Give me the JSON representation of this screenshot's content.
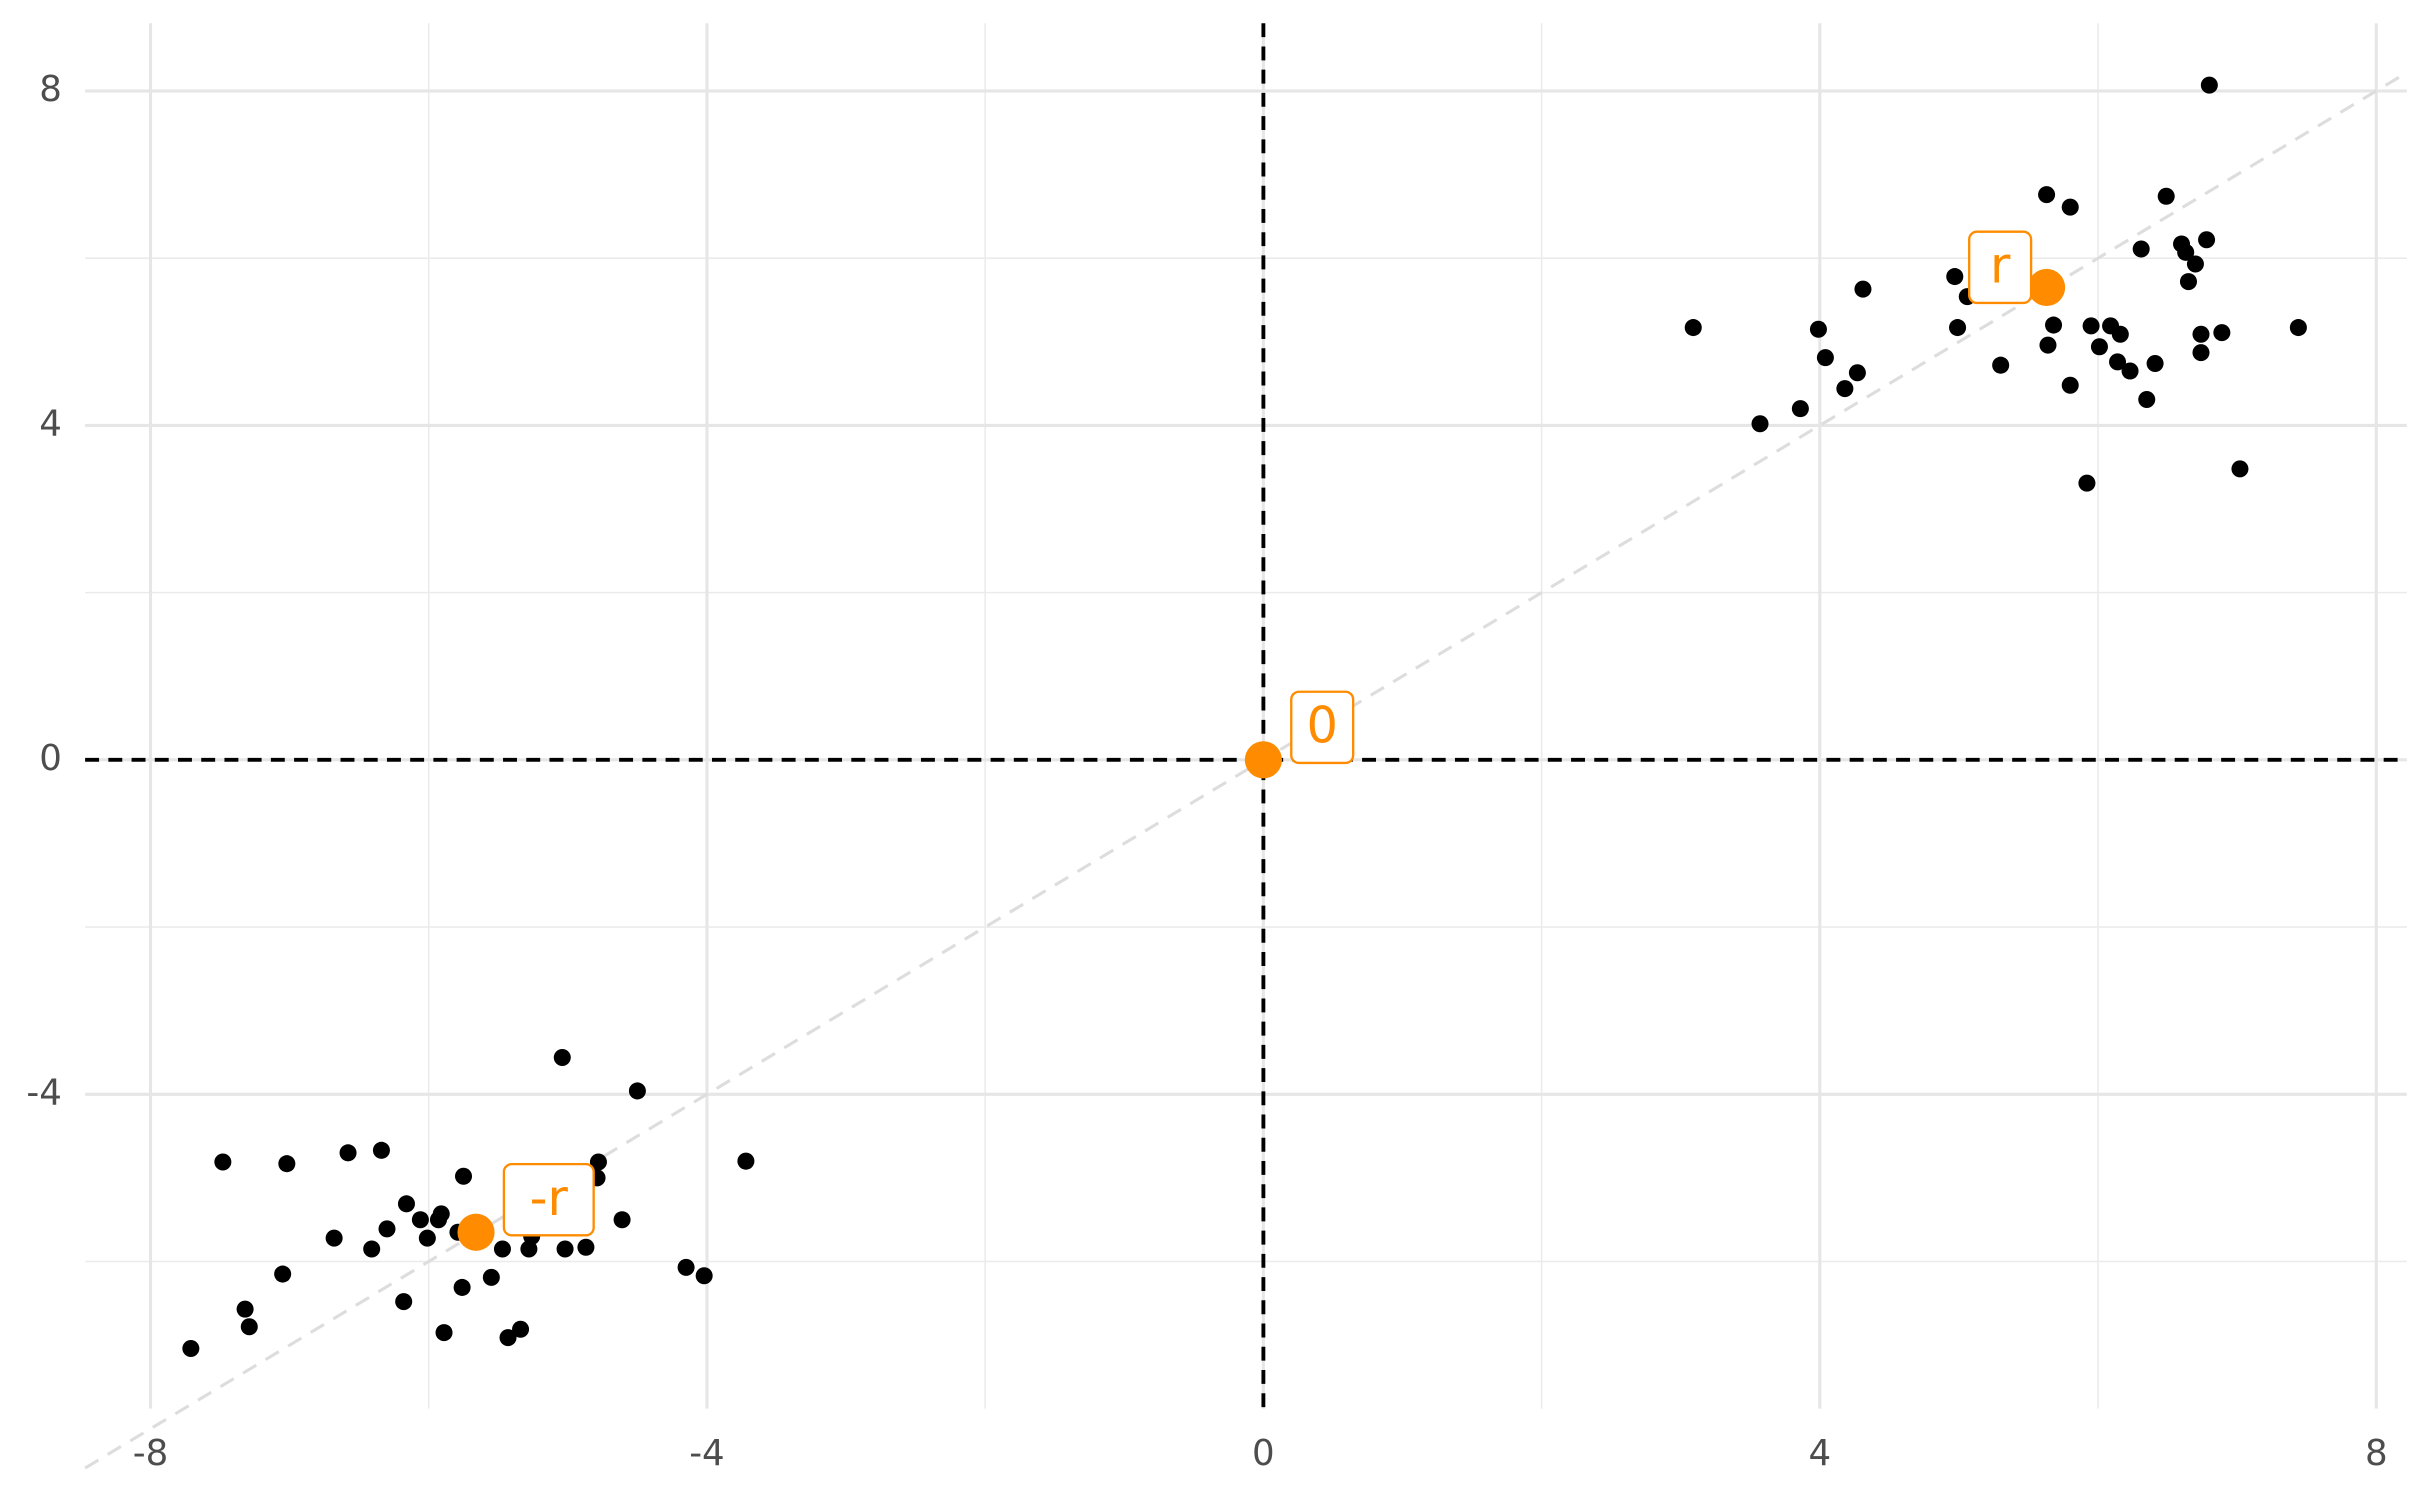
{
  "chart_data": {
    "type": "scatter",
    "xlim": [
      -8.47,
      8.22
    ],
    "ylim": [
      -7.76,
      8.81
    ],
    "xticks": [
      -8,
      -4,
      0,
      4,
      8
    ],
    "yticks": [
      -4,
      0,
      4,
      8
    ],
    "grid": true,
    "hline": 0,
    "vline": 0,
    "abline": {
      "slope": 1,
      "intercept": 0
    },
    "points": {
      "color": "#000000",
      "x": [
        3.09,
        3.57,
        3.86,
        3.99,
        4.04,
        4.18,
        4.27,
        4.31,
        4.97,
        4.99,
        5.06,
        5.3,
        5.63,
        5.64,
        5.68,
        5.8,
        5.8,
        5.92,
        5.95,
        6.01,
        6.09,
        6.14,
        6.16,
        6.23,
        6.31,
        6.35,
        6.41,
        6.49,
        6.6,
        6.63,
        6.65,
        6.7,
        6.74,
        6.74,
        6.78,
        6.8,
        6.89,
        7.02,
        7.44,
        -7.71,
        -7.48,
        -7.32,
        -7.29,
        -7.05,
        -7.02,
        -6.68,
        -6.58,
        -6.41,
        -6.34,
        -6.3,
        -6.18,
        -6.16,
        -6.06,
        -6.01,
        -5.93,
        -5.91,
        -5.89,
        -5.76,
        -5.75,
        -5.79,
        -5.55,
        -5.47,
        -5.43,
        -5.34,
        -5.28,
        -5.26,
        -5.04,
        -5.02,
        -4.87,
        -4.79,
        -4.78,
        -4.61,
        -4.5,
        -4.15,
        -4.02,
        -3.72
      ],
      "y": [
        5.17,
        4.02,
        4.2,
        5.15,
        4.81,
        4.44,
        4.63,
        5.63,
        5.78,
        5.17,
        5.54,
        4.72,
        6.76,
        4.96,
        5.2,
        6.61,
        4.48,
        3.31,
        5.19,
        4.94,
        5.19,
        4.76,
        5.09,
        4.65,
        6.11,
        4.31,
        4.74,
        6.74,
        6.17,
        6.07,
        5.72,
        5.93,
        5.09,
        4.87,
        6.22,
        8.07,
        5.11,
        3.48,
        5.17,
        -7.04,
        -4.81,
        -6.57,
        -6.78,
        -6.15,
        -4.83,
        -5.72,
        -4.7,
        -5.85,
        -4.67,
        -5.61,
        -6.48,
        -5.31,
        -5.5,
        -5.72,
        -5.5,
        -5.43,
        -6.85,
        -6.31,
        -4.98,
        -5.65,
        -6.19,
        -5.85,
        -6.91,
        -6.81,
        -5.85,
        -5.7,
        -3.56,
        -5.85,
        -5.83,
        -5.0,
        -4.81,
        -5.5,
        -3.96,
        -6.07,
        -6.17,
        -4.8
      ]
    },
    "highlights": {
      "color": "#ff8c00",
      "x": [
        0,
        5.63,
        -5.66
      ],
      "y": [
        0,
        5.65,
        -5.65
      ],
      "labels": [
        "0",
        "r",
        "-r"
      ]
    }
  }
}
